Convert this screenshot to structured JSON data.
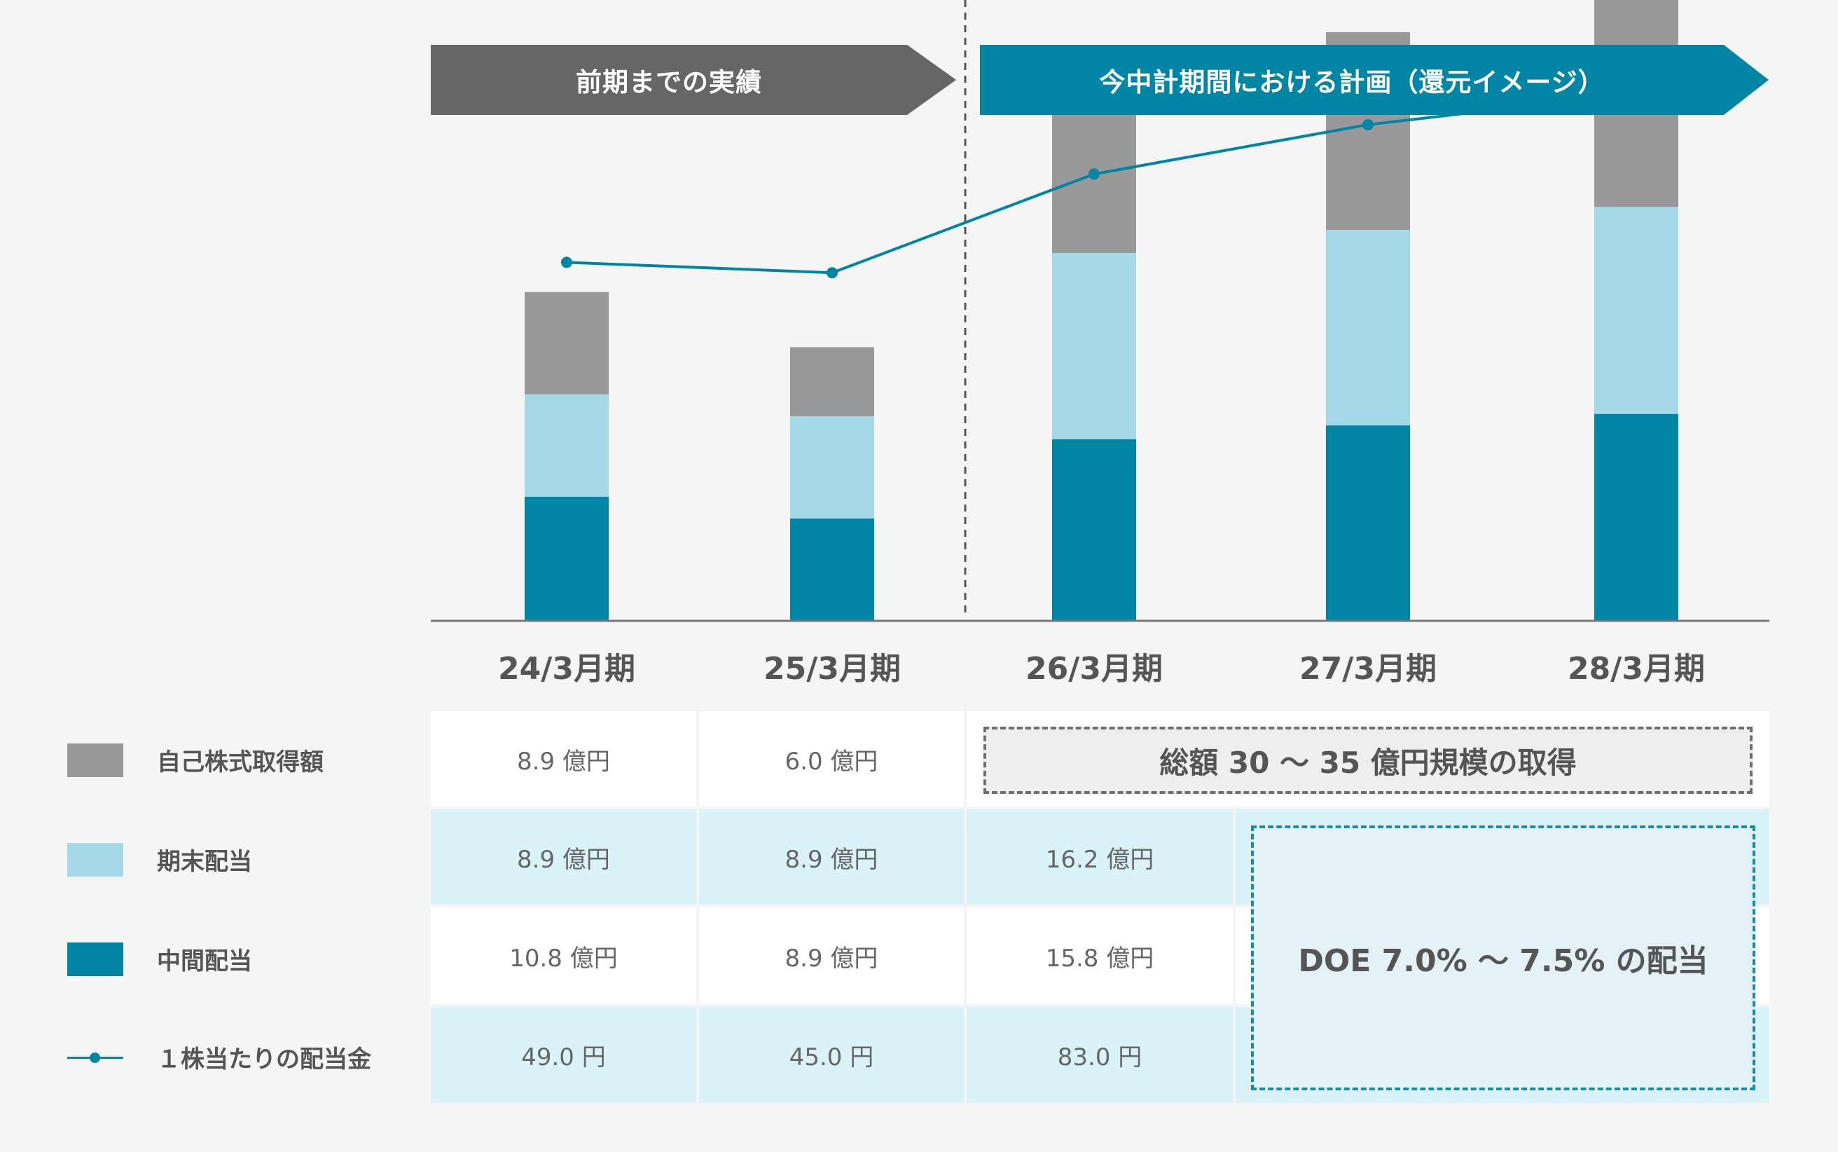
{
  "banners": {
    "past": "前期までの実績",
    "plan": "今中計期間における計画（還元イメージ）"
  },
  "colors": {
    "buyback": "#999999",
    "year_end": "#a6d9e7",
    "interim": "#0085a5",
    "dividend_line": "#0085a5"
  },
  "chart_data": {
    "type": "bar",
    "stacked": true,
    "categories": [
      "24/3月期",
      "25/3月期",
      "26/3月期",
      "27/3月期",
      "28/3月期"
    ],
    "series": [
      {
        "name": "中間配当",
        "values": [
          10.8,
          8.9,
          15.8,
          17.0,
          18.0
        ]
      },
      {
        "name": "期末配当",
        "values": [
          8.9,
          8.9,
          16.2,
          17.0,
          18.0
        ]
      },
      {
        "name": "自己株式取得額",
        "values": [
          8.9,
          6.0,
          16.2,
          17.2,
          18.0
        ]
      }
    ],
    "line_series": {
      "name": "１株当たりの配当金",
      "values": [
        49.0,
        45.0,
        83.0,
        102.0,
        114.0
      ]
    },
    "ylim": [
      0,
      54
    ],
    "line_ylim": [
      -89,
      150
    ]
  },
  "legend": [
    {
      "label": "自己株式取得額"
    },
    {
      "label": "期末配当"
    },
    {
      "label": "中間配当"
    },
    {
      "label": "１株当たりの配当金"
    }
  ],
  "table": {
    "rows": [
      [
        "8.9 億円",
        "6.0 億円"
      ],
      [
        "8.9 億円",
        "8.9 億円",
        "16.2 億円"
      ],
      [
        "10.8 億円",
        "8.9 億円",
        "15.8 億円"
      ],
      [
        "49.0 円",
        "45.0 円",
        "83.0 円"
      ]
    ],
    "buyback_plan": "総額 30 〜 35 億円規模の取得",
    "doe_plan": "DOE 7.0% 〜 7.5% の配当"
  }
}
